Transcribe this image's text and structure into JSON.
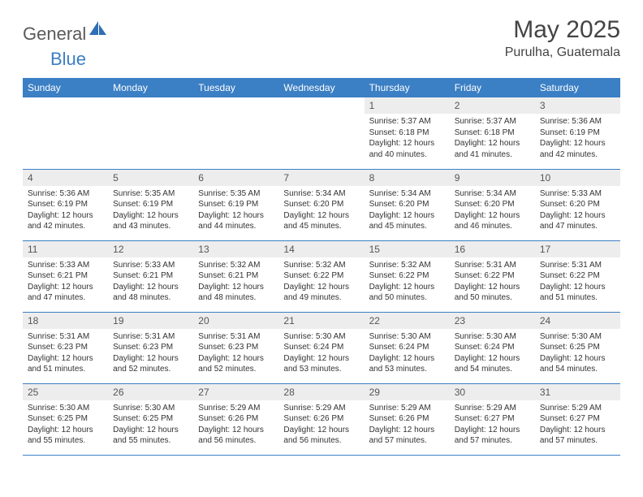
{
  "logo": {
    "text_general": "General",
    "text_blue": "Blue",
    "shape_color": "#2e6fb5"
  },
  "title": "May 2025",
  "location": "Purulha, Guatemala",
  "colors": {
    "header_bg": "#3b7fc4",
    "header_text": "#ffffff",
    "daynum_bg": "#ededed",
    "border": "#3b7fc4"
  },
  "dow": [
    "Sunday",
    "Monday",
    "Tuesday",
    "Wednesday",
    "Thursday",
    "Friday",
    "Saturday"
  ],
  "leading_blanks": 4,
  "days": [
    {
      "n": "1",
      "sunrise": "5:37 AM",
      "sunset": "6:18 PM",
      "daylight": "12 hours and 40 minutes."
    },
    {
      "n": "2",
      "sunrise": "5:37 AM",
      "sunset": "6:18 PM",
      "daylight": "12 hours and 41 minutes."
    },
    {
      "n": "3",
      "sunrise": "5:36 AM",
      "sunset": "6:19 PM",
      "daylight": "12 hours and 42 minutes."
    },
    {
      "n": "4",
      "sunrise": "5:36 AM",
      "sunset": "6:19 PM",
      "daylight": "12 hours and 42 minutes."
    },
    {
      "n": "5",
      "sunrise": "5:35 AM",
      "sunset": "6:19 PM",
      "daylight": "12 hours and 43 minutes."
    },
    {
      "n": "6",
      "sunrise": "5:35 AM",
      "sunset": "6:19 PM",
      "daylight": "12 hours and 44 minutes."
    },
    {
      "n": "7",
      "sunrise": "5:34 AM",
      "sunset": "6:20 PM",
      "daylight": "12 hours and 45 minutes."
    },
    {
      "n": "8",
      "sunrise": "5:34 AM",
      "sunset": "6:20 PM",
      "daylight": "12 hours and 45 minutes."
    },
    {
      "n": "9",
      "sunrise": "5:34 AM",
      "sunset": "6:20 PM",
      "daylight": "12 hours and 46 minutes."
    },
    {
      "n": "10",
      "sunrise": "5:33 AM",
      "sunset": "6:20 PM",
      "daylight": "12 hours and 47 minutes."
    },
    {
      "n": "11",
      "sunrise": "5:33 AM",
      "sunset": "6:21 PM",
      "daylight": "12 hours and 47 minutes."
    },
    {
      "n": "12",
      "sunrise": "5:33 AM",
      "sunset": "6:21 PM",
      "daylight": "12 hours and 48 minutes."
    },
    {
      "n": "13",
      "sunrise": "5:32 AM",
      "sunset": "6:21 PM",
      "daylight": "12 hours and 48 minutes."
    },
    {
      "n": "14",
      "sunrise": "5:32 AM",
      "sunset": "6:22 PM",
      "daylight": "12 hours and 49 minutes."
    },
    {
      "n": "15",
      "sunrise": "5:32 AM",
      "sunset": "6:22 PM",
      "daylight": "12 hours and 50 minutes."
    },
    {
      "n": "16",
      "sunrise": "5:31 AM",
      "sunset": "6:22 PM",
      "daylight": "12 hours and 50 minutes."
    },
    {
      "n": "17",
      "sunrise": "5:31 AM",
      "sunset": "6:22 PM",
      "daylight": "12 hours and 51 minutes."
    },
    {
      "n": "18",
      "sunrise": "5:31 AM",
      "sunset": "6:23 PM",
      "daylight": "12 hours and 51 minutes."
    },
    {
      "n": "19",
      "sunrise": "5:31 AM",
      "sunset": "6:23 PM",
      "daylight": "12 hours and 52 minutes."
    },
    {
      "n": "20",
      "sunrise": "5:31 AM",
      "sunset": "6:23 PM",
      "daylight": "12 hours and 52 minutes."
    },
    {
      "n": "21",
      "sunrise": "5:30 AM",
      "sunset": "6:24 PM",
      "daylight": "12 hours and 53 minutes."
    },
    {
      "n": "22",
      "sunrise": "5:30 AM",
      "sunset": "6:24 PM",
      "daylight": "12 hours and 53 minutes."
    },
    {
      "n": "23",
      "sunrise": "5:30 AM",
      "sunset": "6:24 PM",
      "daylight": "12 hours and 54 minutes."
    },
    {
      "n": "24",
      "sunrise": "5:30 AM",
      "sunset": "6:25 PM",
      "daylight": "12 hours and 54 minutes."
    },
    {
      "n": "25",
      "sunrise": "5:30 AM",
      "sunset": "6:25 PM",
      "daylight": "12 hours and 55 minutes."
    },
    {
      "n": "26",
      "sunrise": "5:30 AM",
      "sunset": "6:25 PM",
      "daylight": "12 hours and 55 minutes."
    },
    {
      "n": "27",
      "sunrise": "5:29 AM",
      "sunset": "6:26 PM",
      "daylight": "12 hours and 56 minutes."
    },
    {
      "n": "28",
      "sunrise": "5:29 AM",
      "sunset": "6:26 PM",
      "daylight": "12 hours and 56 minutes."
    },
    {
      "n": "29",
      "sunrise": "5:29 AM",
      "sunset": "6:26 PM",
      "daylight": "12 hours and 57 minutes."
    },
    {
      "n": "30",
      "sunrise": "5:29 AM",
      "sunset": "6:27 PM",
      "daylight": "12 hours and 57 minutes."
    },
    {
      "n": "31",
      "sunrise": "5:29 AM",
      "sunset": "6:27 PM",
      "daylight": "12 hours and 57 minutes."
    }
  ],
  "labels": {
    "sunrise": "Sunrise:",
    "sunset": "Sunset:",
    "daylight": "Daylight:"
  }
}
